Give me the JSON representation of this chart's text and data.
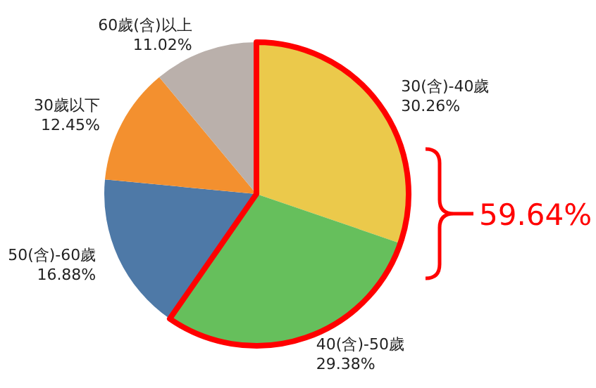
{
  "chart_data": {
    "type": "pie",
    "categories": [
      "30(含)-40歲",
      "40(含)-50歲",
      "50(含)-60歲",
      "30歲以下",
      "60歲(含)以上"
    ],
    "values": [
      30.26,
      29.38,
      16.88,
      12.45,
      11.02
    ],
    "value_labels": [
      "30.26%",
      "29.38%",
      "16.88%",
      "12.45%",
      "11.02%"
    ],
    "colors": [
      "#ebc94b",
      "#66bf5c",
      "#4e79a7",
      "#f3902f",
      "#bab0ab"
    ],
    "annotations": [
      "59.64%"
    ]
  }
}
